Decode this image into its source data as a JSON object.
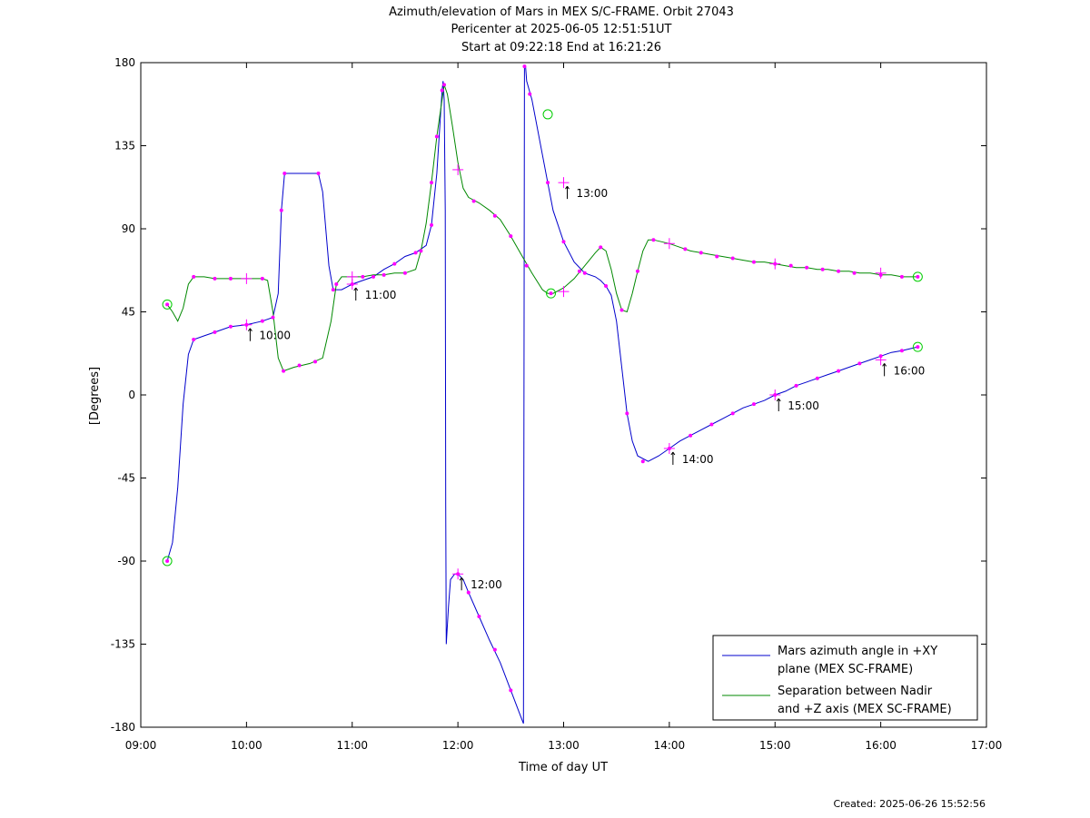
{
  "chart_data": {
    "type": "line",
    "title_lines": [
      "Azimuth/elevation of Mars in MEX S/C-FRAME.  Orbit 27043",
      "Pericenter at 2025-06-05 12:51:51UT",
      "Start at 09:22:18 End at 16:21:26"
    ],
    "xlabel": "Time of day UT",
    "ylabel": "[Degrees]",
    "xlim": [
      9.0,
      17.0
    ],
    "ylim": [
      -180,
      180
    ],
    "x_ticks": [
      {
        "value": 9,
        "label": "09:00"
      },
      {
        "value": 10,
        "label": "10:00"
      },
      {
        "value": 11,
        "label": "11:00"
      },
      {
        "value": 12,
        "label": "12:00"
      },
      {
        "value": 13,
        "label": "13:00"
      },
      {
        "value": 14,
        "label": "14:00"
      },
      {
        "value": 15,
        "label": "15:00"
      },
      {
        "value": 16,
        "label": "16:00"
      },
      {
        "value": 17,
        "label": "17:00"
      }
    ],
    "y_ticks": [
      {
        "value": 180,
        "label": "180"
      },
      {
        "value": 135,
        "label": "135"
      },
      {
        "value": 90,
        "label": "90"
      },
      {
        "value": 45,
        "label": "45"
      },
      {
        "value": 0,
        "label": "0"
      },
      {
        "value": -45,
        "label": "-45"
      },
      {
        "value": -90,
        "label": "-90"
      },
      {
        "value": -135,
        "label": "-135"
      },
      {
        "value": -180,
        "label": "-180"
      }
    ],
    "grid": false,
    "legend_position": "bottom-right",
    "series": [
      {
        "name_lines": [
          "Mars azimuth angle in +XY",
          "plane (MEX SC-FRAME)"
        ],
        "color": "#0000cc",
        "points": [
          [
            9.25,
            -90
          ],
          [
            9.3,
            -80
          ],
          [
            9.35,
            -50
          ],
          [
            9.4,
            -5
          ],
          [
            9.45,
            22
          ],
          [
            9.5,
            30
          ],
          [
            9.6,
            32
          ],
          [
            9.7,
            34
          ],
          [
            9.85,
            37
          ],
          [
            10.0,
            38
          ],
          [
            10.15,
            40
          ],
          [
            10.25,
            42
          ],
          [
            10.3,
            55
          ],
          [
            10.33,
            100
          ],
          [
            10.36,
            120
          ],
          [
            10.45,
            120
          ],
          [
            10.6,
            120
          ],
          [
            10.68,
            120
          ],
          [
            10.72,
            110
          ],
          [
            10.78,
            70
          ],
          [
            10.82,
            57
          ],
          [
            10.9,
            57
          ],
          [
            11.0,
            60
          ],
          [
            11.1,
            62
          ],
          [
            11.2,
            64
          ],
          [
            11.3,
            68
          ],
          [
            11.4,
            71
          ],
          [
            11.5,
            75
          ],
          [
            11.6,
            77
          ],
          [
            11.7,
            81
          ],
          [
            11.75,
            92
          ],
          [
            11.8,
            120
          ],
          [
            11.85,
            165
          ],
          [
            11.86,
            170
          ],
          [
            11.87,
            160
          ],
          [
            11.88,
            100
          ],
          [
            11.885,
            -60
          ],
          [
            11.89,
            -135
          ],
          [
            11.91,
            -115
          ],
          [
            11.93,
            -100
          ],
          [
            11.97,
            -97
          ],
          [
            12.0,
            -97
          ],
          [
            12.05,
            -100
          ],
          [
            12.1,
            -107
          ],
          [
            12.2,
            -120
          ],
          [
            12.3,
            -133
          ],
          [
            12.4,
            -145
          ],
          [
            12.5,
            -160
          ],
          [
            12.6,
            -175
          ],
          [
            12.62,
            -178
          ],
          [
            12.63,
            178
          ],
          [
            12.64,
            178
          ],
          [
            12.65,
            170
          ],
          [
            12.7,
            160
          ],
          [
            12.75,
            145
          ],
          [
            12.8,
            130
          ],
          [
            12.85,
            115
          ],
          [
            12.9,
            100
          ],
          [
            13.0,
            83
          ],
          [
            13.1,
            72
          ],
          [
            13.2,
            66
          ],
          [
            13.3,
            64
          ],
          [
            13.35,
            62
          ],
          [
            13.4,
            59
          ],
          [
            13.45,
            54
          ],
          [
            13.5,
            40
          ],
          [
            13.55,
            15
          ],
          [
            13.6,
            -10
          ],
          [
            13.65,
            -25
          ],
          [
            13.7,
            -33
          ],
          [
            13.8,
            -36
          ],
          [
            13.9,
            -33
          ],
          [
            14.0,
            -29
          ],
          [
            14.1,
            -25
          ],
          [
            14.2,
            -22
          ],
          [
            14.3,
            -19
          ],
          [
            14.4,
            -16
          ],
          [
            14.5,
            -13
          ],
          [
            14.6,
            -10
          ],
          [
            14.7,
            -7
          ],
          [
            14.8,
            -5
          ],
          [
            14.9,
            -3
          ],
          [
            15.0,
            0
          ],
          [
            15.1,
            2
          ],
          [
            15.2,
            5
          ],
          [
            15.3,
            7
          ],
          [
            15.4,
            9
          ],
          [
            15.5,
            11
          ],
          [
            15.6,
            13
          ],
          [
            15.7,
            15
          ],
          [
            15.8,
            17
          ],
          [
            15.9,
            19
          ],
          [
            16.0,
            21
          ],
          [
            16.1,
            23
          ],
          [
            16.2,
            24
          ],
          [
            16.35,
            26
          ]
        ],
        "markers": [
          [
            9.25,
            -90
          ],
          [
            9.5,
            30
          ],
          [
            9.7,
            34
          ],
          [
            9.85,
            37
          ],
          [
            10.0,
            38
          ],
          [
            10.15,
            40
          ],
          [
            10.25,
            42
          ],
          [
            10.33,
            100
          ],
          [
            10.36,
            120
          ],
          [
            10.68,
            120
          ],
          [
            10.82,
            57
          ],
          [
            11.0,
            60
          ],
          [
            11.2,
            64
          ],
          [
            11.4,
            71
          ],
          [
            11.6,
            77
          ],
          [
            11.75,
            92
          ],
          [
            11.85,
            165
          ],
          [
            12.0,
            -97
          ],
          [
            12.1,
            -107
          ],
          [
            12.2,
            -120
          ],
          [
            12.35,
            -138
          ],
          [
            12.5,
            -160
          ],
          [
            12.63,
            178
          ],
          [
            12.68,
            163
          ],
          [
            12.85,
            115
          ],
          [
            13.0,
            83
          ],
          [
            13.2,
            66
          ],
          [
            13.4,
            59
          ],
          [
            13.6,
            -10
          ],
          [
            13.75,
            -36
          ],
          [
            14.0,
            -29
          ],
          [
            14.2,
            -22
          ],
          [
            14.4,
            -16
          ],
          [
            14.6,
            -10
          ],
          [
            14.8,
            -5
          ],
          [
            15.0,
            0
          ],
          [
            15.2,
            5
          ],
          [
            15.4,
            9
          ],
          [
            15.6,
            13
          ],
          [
            15.8,
            17
          ],
          [
            16.0,
            21
          ],
          [
            16.2,
            24
          ],
          [
            16.35,
            26
          ]
        ]
      },
      {
        "name_lines": [
          "Separation between Nadir",
          "and +Z axis (MEX SC-FRAME)"
        ],
        "color": "#008800",
        "points": [
          [
            9.25,
            49
          ],
          [
            9.3,
            45
          ],
          [
            9.35,
            40
          ],
          [
            9.4,
            47
          ],
          [
            9.45,
            60
          ],
          [
            9.5,
            64
          ],
          [
            9.6,
            64
          ],
          [
            9.7,
            63
          ],
          [
            9.85,
            63
          ],
          [
            10.0,
            63
          ],
          [
            10.15,
            63
          ],
          [
            10.2,
            62
          ],
          [
            10.25,
            45
          ],
          [
            10.3,
            20
          ],
          [
            10.35,
            13
          ],
          [
            10.45,
            15
          ],
          [
            10.6,
            17
          ],
          [
            10.72,
            20
          ],
          [
            10.8,
            40
          ],
          [
            10.85,
            60
          ],
          [
            10.9,
            64
          ],
          [
            11.0,
            64
          ],
          [
            11.1,
            64
          ],
          [
            11.2,
            65
          ],
          [
            11.3,
            65
          ],
          [
            11.4,
            66
          ],
          [
            11.5,
            66
          ],
          [
            11.6,
            68
          ],
          [
            11.65,
            78
          ],
          [
            11.7,
            93
          ],
          [
            11.75,
            115
          ],
          [
            11.8,
            140
          ],
          [
            11.85,
            160
          ],
          [
            11.87,
            168
          ],
          [
            11.9,
            163
          ],
          [
            11.95,
            145
          ],
          [
            12.0,
            126
          ],
          [
            12.05,
            112
          ],
          [
            12.1,
            107
          ],
          [
            12.2,
            104
          ],
          [
            12.3,
            100
          ],
          [
            12.4,
            95
          ],
          [
            12.5,
            86
          ],
          [
            12.6,
            76
          ],
          [
            12.7,
            66
          ],
          [
            12.8,
            57
          ],
          [
            12.85,
            55
          ],
          [
            12.9,
            55
          ],
          [
            13.0,
            58
          ],
          [
            13.1,
            63
          ],
          [
            13.2,
            70
          ],
          [
            13.3,
            77
          ],
          [
            13.35,
            80
          ],
          [
            13.4,
            78
          ],
          [
            13.45,
            68
          ],
          [
            13.5,
            55
          ],
          [
            13.55,
            46
          ],
          [
            13.6,
            45
          ],
          [
            13.65,
            55
          ],
          [
            13.7,
            67
          ],
          [
            13.75,
            78
          ],
          [
            13.8,
            84
          ],
          [
            13.85,
            84
          ],
          [
            14.0,
            82
          ],
          [
            14.1,
            80
          ],
          [
            14.2,
            78
          ],
          [
            14.3,
            77
          ],
          [
            14.4,
            76
          ],
          [
            14.5,
            75
          ],
          [
            14.6,
            74
          ],
          [
            14.7,
            73
          ],
          [
            14.8,
            72
          ],
          [
            14.9,
            72
          ],
          [
            15.0,
            71
          ],
          [
            15.1,
            70
          ],
          [
            15.2,
            69
          ],
          [
            15.3,
            69
          ],
          [
            15.4,
            68
          ],
          [
            15.5,
            68
          ],
          [
            15.6,
            67
          ],
          [
            15.7,
            67
          ],
          [
            15.8,
            66
          ],
          [
            15.9,
            66
          ],
          [
            16.0,
            65
          ],
          [
            16.1,
            65
          ],
          [
            16.2,
            64
          ],
          [
            16.35,
            64
          ]
        ],
        "markers": [
          [
            9.25,
            49
          ],
          [
            9.5,
            64
          ],
          [
            9.7,
            63
          ],
          [
            9.85,
            63
          ],
          [
            10.15,
            63
          ],
          [
            10.35,
            13
          ],
          [
            10.5,
            16
          ],
          [
            10.65,
            18
          ],
          [
            10.85,
            60
          ],
          [
            11.1,
            64
          ],
          [
            11.3,
            65
          ],
          [
            11.5,
            66
          ],
          [
            11.65,
            78
          ],
          [
            11.75,
            115
          ],
          [
            11.8,
            140
          ],
          [
            11.87,
            168
          ],
          [
            12.15,
            105
          ],
          [
            12.35,
            97
          ],
          [
            12.5,
            86
          ],
          [
            12.65,
            70
          ],
          [
            12.88,
            55
          ],
          [
            13.15,
            67
          ],
          [
            13.35,
            80
          ],
          [
            13.55,
            46
          ],
          [
            13.7,
            67
          ],
          [
            13.85,
            84
          ],
          [
            14.15,
            79
          ],
          [
            14.3,
            77
          ],
          [
            14.45,
            75
          ],
          [
            14.6,
            74
          ],
          [
            14.8,
            72
          ],
          [
            15.0,
            71
          ],
          [
            15.15,
            70
          ],
          [
            15.3,
            69
          ],
          [
            15.45,
            68
          ],
          [
            15.6,
            67
          ],
          [
            15.75,
            66
          ],
          [
            16.0,
            65
          ],
          [
            16.2,
            64
          ],
          [
            16.35,
            64
          ]
        ]
      }
    ],
    "hour_crosses": [
      [
        10.0,
        38
      ],
      [
        10.0,
        63
      ],
      [
        11.0,
        60
      ],
      [
        11.0,
        64
      ],
      [
        12.0,
        -97
      ],
      [
        12.0,
        122
      ],
      [
        13.0,
        56
      ],
      [
        13.0,
        115
      ],
      [
        14.0,
        -29
      ],
      [
        14.0,
        82
      ],
      [
        15.0,
        0
      ],
      [
        15.0,
        71
      ],
      [
        16.0,
        19
      ],
      [
        16.0,
        66
      ]
    ],
    "endpoint_circles": [
      [
        9.25,
        -90
      ],
      [
        9.25,
        49
      ],
      [
        12.85,
        152
      ],
      [
        12.88,
        55
      ],
      [
        16.35,
        26
      ],
      [
        16.35,
        64
      ]
    ],
    "annotations": [
      {
        "x": 10.0,
        "y": 38,
        "label": "10:00"
      },
      {
        "x": 11.0,
        "y": 60,
        "label": "11:00"
      },
      {
        "x": 12.0,
        "y": -97,
        "label": "12:00"
      },
      {
        "x": 13.0,
        "y": 115,
        "label": "13:00"
      },
      {
        "x": 14.0,
        "y": -29,
        "label": "14:00"
      },
      {
        "x": 15.0,
        "y": 0,
        "label": "15:00"
      },
      {
        "x": 16.0,
        "y": 19,
        "label": "16:00"
      }
    ],
    "marker_color": "#ff00ff",
    "circle_color": "#00cc00",
    "footer_created": "Created: 2025-06-26 15:52:56"
  }
}
